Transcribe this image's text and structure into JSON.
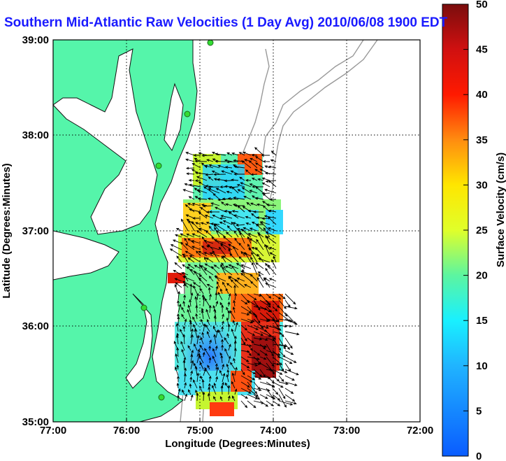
{
  "title": "Southern Mid-Atlantic Raw Velocities (1 Day Avg) 2010/06/08 1900 EDT",
  "x_axis": {
    "label": "Longitude (Degrees:Minutes)",
    "ticks": [
      "77:00",
      "76:00",
      "75:00",
      "74:00",
      "73:00",
      "72:00"
    ]
  },
  "y_axis": {
    "label": "Latitude (Degrees:Minutes)",
    "ticks": [
      "39:00",
      "38:00",
      "37:00",
      "36:00",
      "35:00"
    ]
  },
  "colorbar": {
    "label": "Surface Velocity (cm/s)",
    "ticks": [
      "50",
      "45",
      "40",
      "35",
      "30",
      "25",
      "20",
      "15",
      "10",
      "5",
      "0"
    ],
    "min": 0,
    "max": 50
  },
  "colors": {
    "land": "#55f5aa",
    "water": "#ffffff",
    "bathymetry": "#999999",
    "grid": "#000000",
    "title": "#1a1aff",
    "station": "#33dd33"
  },
  "extent": {
    "lon_west": -77,
    "lon_east": -72,
    "lat_south": 35,
    "lat_north": 39
  }
}
